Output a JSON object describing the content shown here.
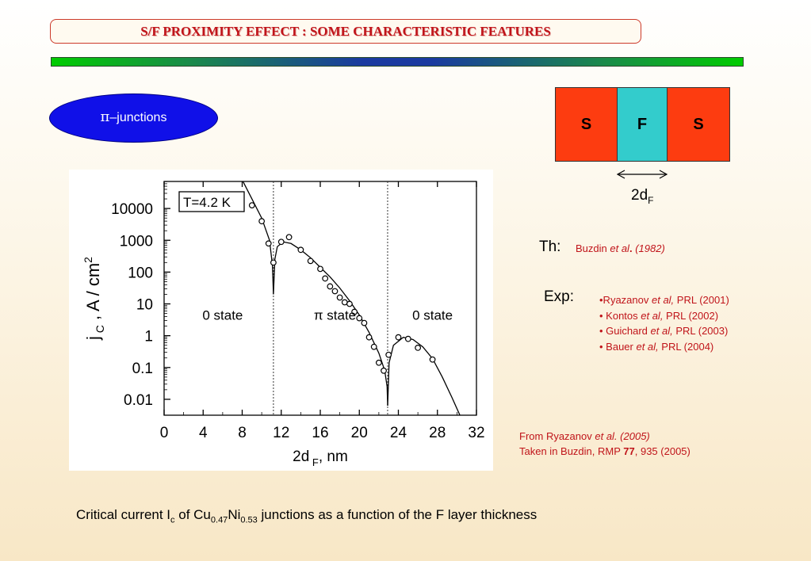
{
  "header": {
    "title": "S/F PROXIMITY EFFECT : SOME CHARACTERISTIC FEATURES"
  },
  "oval": {
    "pi": "π",
    "label": "–junctions"
  },
  "diagram": {
    "s_left": "S",
    "f_mid": "F",
    "s_right": "S",
    "thickness": "2d",
    "thickness_sub": "F"
  },
  "theory": {
    "label": "Th:",
    "author": "Buzdin ",
    "etal": "et al",
    "dot": ".",
    "year": "(1982)"
  },
  "experiment": {
    "label": "Exp:",
    "refs": [
      {
        "pre": "•Ryazanov ",
        "etal": "et al,",
        "post": " PRL  (2001)"
      },
      {
        "pre": "• Kontos ",
        "etal": "et al,",
        "post": " PRL (2002)"
      },
      {
        "pre": "• Guichard ",
        "etal": "et al,",
        "post": " PRL (2003)"
      },
      {
        "pre": "• Bauer ",
        "etal": "et al,",
        "post": " PRL (2004)"
      }
    ]
  },
  "source": {
    "line1_pre": "From Ryazanov ",
    "line1_etal": "et al. (2005)",
    "line2_pre": "Taken in Buzdin, RMP ",
    "line2_vol": "77",
    "line2_post": ", 935 (2005)"
  },
  "caption": {
    "p1": "Critical current I",
    "sub1": "c",
    "p2": " of Cu",
    "sub2": "0.47",
    "p3": "Ni",
    "sub3": "0.53",
    "p4": " junctions as a function of the F layer thickness"
  },
  "chart_data": {
    "type": "scatter",
    "temperature_label": "T=4.2  K",
    "xlabel": "2d",
    "xlabel_sub": "F",
    "xlabel_unit": ", nm",
    "ylabel": "j",
    "ylabel_sub": "C",
    "ylabel_unit": ", A / cm",
    "ylabel_sup": "2",
    "xlim": [
      0,
      32
    ],
    "ylim_log10": [
      -2.5,
      4.85
    ],
    "x_ticks": [
      0,
      4,
      8,
      12,
      16,
      20,
      24,
      28,
      32
    ],
    "y_ticks": [
      {
        "label": "10000",
        "log": 4
      },
      {
        "label": "1000",
        "log": 3
      },
      {
        "label": "100",
        "log": 2
      },
      {
        "label": "10",
        "log": 1
      },
      {
        "label": "1",
        "log": 0
      },
      {
        "label": "0.1",
        "log": -1
      },
      {
        "label": "0.01",
        "log": -2
      }
    ],
    "state_labels": [
      {
        "text": "0 state",
        "x": 6,
        "log": 0.5
      },
      {
        "text": "π state",
        "x": 17.5,
        "log": 0.5
      },
      {
        "text": "0 state",
        "x": 27.5,
        "log": 0.5
      }
    ],
    "transitions": [
      11.2,
      22.9
    ],
    "points": [
      [
        9.0,
        4.1
      ],
      [
        10.0,
        3.6
      ],
      [
        10.7,
        2.9
      ],
      [
        11.2,
        2.3
      ],
      [
        12.0,
        2.95
      ],
      [
        12.8,
        3.1
      ],
      [
        14.0,
        2.7
      ],
      [
        15.0,
        2.35
      ],
      [
        16.0,
        2.1
      ],
      [
        16.5,
        1.8
      ],
      [
        17.0,
        1.55
      ],
      [
        17.5,
        1.4
      ],
      [
        18.0,
        1.2
      ],
      [
        18.5,
        1.05
      ],
      [
        19.0,
        1.0
      ],
      [
        19.5,
        0.75
      ],
      [
        20.0,
        0.55
      ],
      [
        20.5,
        0.4
      ],
      [
        21.0,
        -0.05
      ],
      [
        21.5,
        -0.35
      ],
      [
        22.0,
        -0.85
      ],
      [
        22.5,
        -1.1
      ],
      [
        23.0,
        -0.6
      ],
      [
        24.0,
        -0.05
      ],
      [
        25.0,
        -0.1
      ],
      [
        26.0,
        -0.38
      ],
      [
        27.5,
        -0.75
      ]
    ],
    "curve_segments": [
      [
        [
          7.0,
          5.5
        ],
        [
          8.0,
          4.9
        ],
        [
          9.0,
          4.3
        ],
        [
          10.0,
          3.7
        ],
        [
          10.8,
          3.0
        ],
        [
          11.1,
          2.2
        ],
        [
          11.2,
          1.3
        ]
      ],
      [
        [
          11.2,
          1.3
        ],
        [
          11.35,
          2.4
        ],
        [
          11.6,
          2.8
        ],
        [
          12.2,
          2.95
        ],
        [
          13.0,
          2.9
        ],
        [
          14.0,
          2.7
        ],
        [
          15.0,
          2.45
        ],
        [
          16.0,
          2.15
        ],
        [
          17.0,
          1.85
        ],
        [
          18.0,
          1.5
        ],
        [
          19.0,
          1.1
        ],
        [
          20.0,
          0.65
        ],
        [
          21.0,
          0.1
        ],
        [
          22.0,
          -0.55
        ],
        [
          22.6,
          -1.1
        ],
        [
          22.85,
          -1.6
        ],
        [
          22.9,
          -2.2
        ]
      ],
      [
        [
          22.9,
          -2.2
        ],
        [
          23.05,
          -0.85
        ],
        [
          23.5,
          -0.3
        ],
        [
          24.5,
          -0.05
        ],
        [
          25.5,
          -0.12
        ],
        [
          26.5,
          -0.35
        ],
        [
          27.5,
          -0.72
        ],
        [
          28.5,
          -1.3
        ],
        [
          29.5,
          -1.95
        ],
        [
          30.3,
          -2.5
        ]
      ]
    ]
  }
}
